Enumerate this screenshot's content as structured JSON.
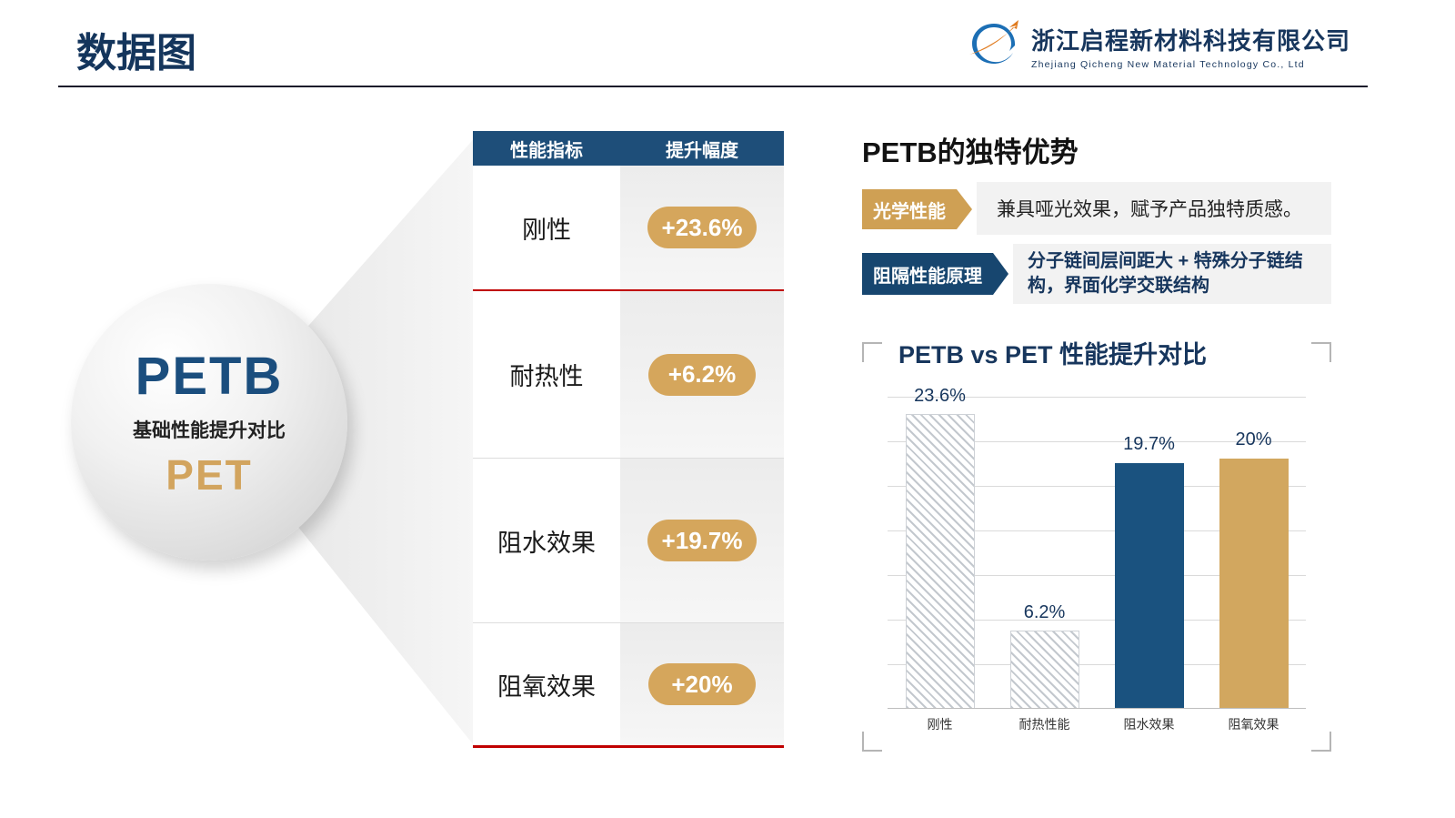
{
  "header": {
    "title": "数据图",
    "company_cn": "浙江启程新材料科技有限公司",
    "company_en": "Zhejiang Qicheng New Material Technology Co., Ltd"
  },
  "sphere": {
    "product": "PETB",
    "caption": "基础性能提升对比",
    "baseline": "PET"
  },
  "table": {
    "headers": [
      "性能指标",
      "提升幅度"
    ],
    "rows": [
      {
        "label": "刚性",
        "value": "+23.6%"
      },
      {
        "label": "耐热性",
        "value": "+6.2%"
      },
      {
        "label": "阻水效果",
        "value": "+19.7%"
      },
      {
        "label": "阻氧效果",
        "value": "+20%"
      }
    ]
  },
  "advantages": {
    "title": "PETB的独特优势",
    "items": [
      {
        "tag": "光学性能",
        "text": "兼具哑光效果，赋予产品独特质感。"
      },
      {
        "tag": "阻隔性能原理",
        "text": "分子链间层间距大 + 特殊分子链结构，界面化学交联结构"
      }
    ]
  },
  "chart_data": {
    "type": "bar",
    "title": "PETB vs PET 性能提升对比",
    "categories": [
      "刚性",
      "耐热性能",
      "阻水效果",
      "阻氧效果"
    ],
    "values": [
      23.6,
      6.2,
      19.7,
      20
    ],
    "labels": [
      "23.6%",
      "6.2%",
      "19.7%",
      "20%"
    ],
    "ylim": [
      0,
      25
    ],
    "grid": true,
    "legend": "none",
    "bar_styles": [
      "hatch",
      "hatch",
      "navy",
      "gold"
    ]
  },
  "colors": {
    "navy": "#1E4E79",
    "navy_bar": "#1A527F",
    "gold": "#D5A65C",
    "gold_bar": "#D2A75F",
    "red_line": "#C00000",
    "gray_panel": "#F2F2F2"
  }
}
